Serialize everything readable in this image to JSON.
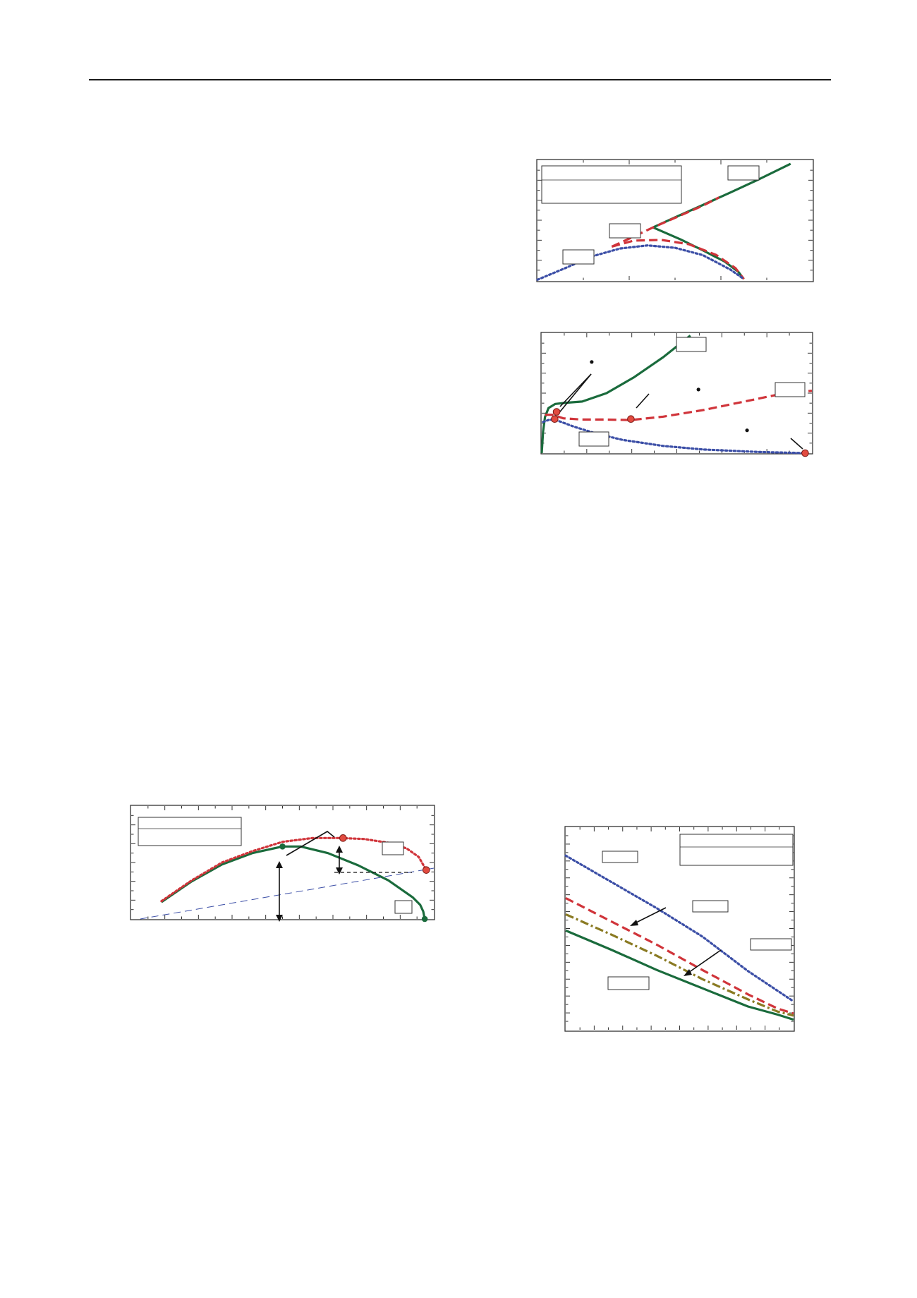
{
  "colors": {
    "green": "#1a6b3c",
    "red": "#d0343a",
    "blue": "#3b4ea6",
    "olive": "#8a7a22",
    "marker": "#e24b40",
    "frame": "#333333",
    "rule": "#1a1a1a"
  },
  "chart_data": [
    {
      "type": "line",
      "title": "",
      "xlabel": "",
      "ylabel": "",
      "xlim": [
        0,
        10
      ],
      "ylim": [
        0,
        5
      ],
      "grid": false,
      "legend": "top-left",
      "series": [
        {
          "style": "solid",
          "color": "green",
          "x": [
            4.2,
            5,
            6,
            7,
            8,
            9.2
          ],
          "y": [
            2.2,
            2.62,
            3.13,
            3.65,
            4.18,
            4.85
          ]
        },
        {
          "style": "solid",
          "color": "green",
          "x": [
            4.2,
            4.5,
            5.2,
            6,
            6.8,
            7.3,
            7.5
          ],
          "y": [
            2.2,
            2.05,
            1.7,
            1.25,
            0.78,
            0.35,
            0.05
          ]
        },
        {
          "style": "dashed",
          "color": "red",
          "x": [
            2.7,
            3.5,
            4.2,
            5,
            6,
            6.6
          ],
          "y": [
            1.4,
            1.82,
            2.2,
            2.6,
            3.1,
            3.45
          ]
        },
        {
          "style": "dashed",
          "color": "red",
          "x": [
            2.7,
            3.5,
            4.5,
            5.5,
            6.5,
            7.2,
            7.5
          ],
          "y": [
            1.4,
            1.65,
            1.68,
            1.5,
            1.05,
            0.5,
            0.05
          ]
        },
        {
          "style": "dotted",
          "color": "blue",
          "x": [
            0,
            1,
            2,
            3,
            4,
            5,
            6,
            7,
            7.5
          ],
          "y": [
            0.02,
            0.5,
            1.0,
            1.32,
            1.45,
            1.35,
            1.05,
            0.45,
            0.05
          ]
        }
      ]
    },
    {
      "type": "line",
      "title": "",
      "xlabel": "",
      "ylabel": "",
      "xlim": [
        0,
        10
      ],
      "ylim": [
        0,
        5
      ],
      "grid": false,
      "series": [
        {
          "style": "solid",
          "color": "green",
          "x": [
            0,
            0.05,
            0.12,
            0.25,
            0.5,
            0.9,
            1.5,
            2.4,
            3.4,
            4.5,
            5.5
          ],
          "y": [
            0.0,
            0.9,
            1.5,
            1.88,
            2.05,
            2.1,
            2.15,
            2.5,
            3.15,
            4.0,
            4.9
          ]
        },
        {
          "style": "dashed",
          "color": "red",
          "x": [
            0.12,
            0.4,
            0.8,
            1.5,
            2.3,
            3.3,
            4.5,
            6,
            7.5,
            9,
            10
          ],
          "y": [
            1.6,
            1.6,
            1.45,
            1.4,
            1.4,
            1.38,
            1.52,
            1.8,
            2.15,
            2.5,
            2.6
          ]
        },
        {
          "style": "dotted",
          "color": "blue",
          "x": [
            0.05,
            0.3,
            0.6,
            1.2,
            2,
            3,
            4.5,
            6,
            8,
            9.8
          ],
          "y": [
            1.3,
            1.4,
            1.35,
            1.1,
            0.82,
            0.55,
            0.3,
            0.15,
            0.05,
            0.0
          ]
        }
      ],
      "markers": [
        {
          "x": 0.55,
          "y": 1.72
        },
        {
          "x": 0.48,
          "y": 1.42
        },
        {
          "x": 3.3,
          "y": 1.42
        },
        {
          "x": 9.75,
          "y": 0.0
        }
      ],
      "dots": [
        {
          "x": 1.85,
          "y": 3.8
        },
        {
          "x": 5.8,
          "y": 2.65
        },
        {
          "x": 7.6,
          "y": 0.95
        }
      ]
    },
    {
      "type": "line",
      "title": "",
      "xlabel": "",
      "ylabel": "",
      "xlim": [
        0,
        10
      ],
      "ylim": [
        0,
        6
      ],
      "grid": false,
      "legend": "top-left",
      "series": [
        {
          "style": "solid",
          "color": "green",
          "x": [
            1,
            2,
            3,
            4,
            5,
            5.6,
            6.5,
            7.5,
            8.5,
            9.3,
            9.55,
            9.65,
            9.7
          ],
          "y": [
            0.9,
            2.0,
            2.9,
            3.5,
            3.85,
            3.85,
            3.5,
            2.85,
            2.05,
            1.15,
            0.75,
            0.4,
            0.0
          ]
        },
        {
          "style": "dotted",
          "color": "red",
          "x": [
            1,
            2,
            3,
            4,
            5,
            6,
            6.9,
            7.7,
            8.5,
            9.1,
            9.5,
            9.75
          ],
          "y": [
            0.95,
            2.05,
            3.0,
            3.6,
            4.1,
            4.3,
            4.3,
            4.25,
            4.05,
            3.75,
            3.3,
            2.6
          ]
        },
        {
          "style": "dashed",
          "color": "blue",
          "x": [
            0.3,
            10
          ],
          "y": [
            0.0,
            2.7
          ]
        }
      ],
      "markers": [
        {
          "x": 7.0,
          "y": 4.3
        },
        {
          "x": 9.75,
          "y": 2.6
        },
        {
          "x": 5.0,
          "y": 3.85
        },
        {
          "x": 9.7,
          "y": 0.0
        }
      ]
    },
    {
      "type": "line",
      "title": "",
      "xlabel": "",
      "ylabel": "",
      "xlim": [
        0,
        10
      ],
      "ylim": [
        0,
        10
      ],
      "grid": false,
      "legend": "top-right",
      "series": [
        {
          "style": "dotted",
          "color": "blue",
          "x": [
            0,
            2,
            4,
            6,
            8,
            10
          ],
          "y": [
            8.6,
            7.3,
            6.0,
            4.6,
            2.9,
            1.4
          ]
        },
        {
          "style": "dashed",
          "color": "red",
          "x": [
            0,
            2,
            4,
            6,
            8,
            9.3,
            10
          ],
          "y": [
            6.5,
            5.35,
            4.2,
            2.95,
            1.75,
            1.05,
            0.8
          ]
        },
        {
          "style": "dashdot",
          "color": "olive",
          "x": [
            0,
            2,
            4,
            6,
            8,
            9.3,
            10
          ],
          "y": [
            5.7,
            4.7,
            3.65,
            2.5,
            1.5,
            0.9,
            0.7
          ]
        },
        {
          "style": "solid",
          "color": "green",
          "x": [
            0,
            2,
            4,
            6,
            8,
            9.3,
            10
          ],
          "y": [
            4.9,
            3.95,
            2.95,
            2.05,
            1.15,
            0.75,
            0.5
          ]
        }
      ]
    }
  ]
}
